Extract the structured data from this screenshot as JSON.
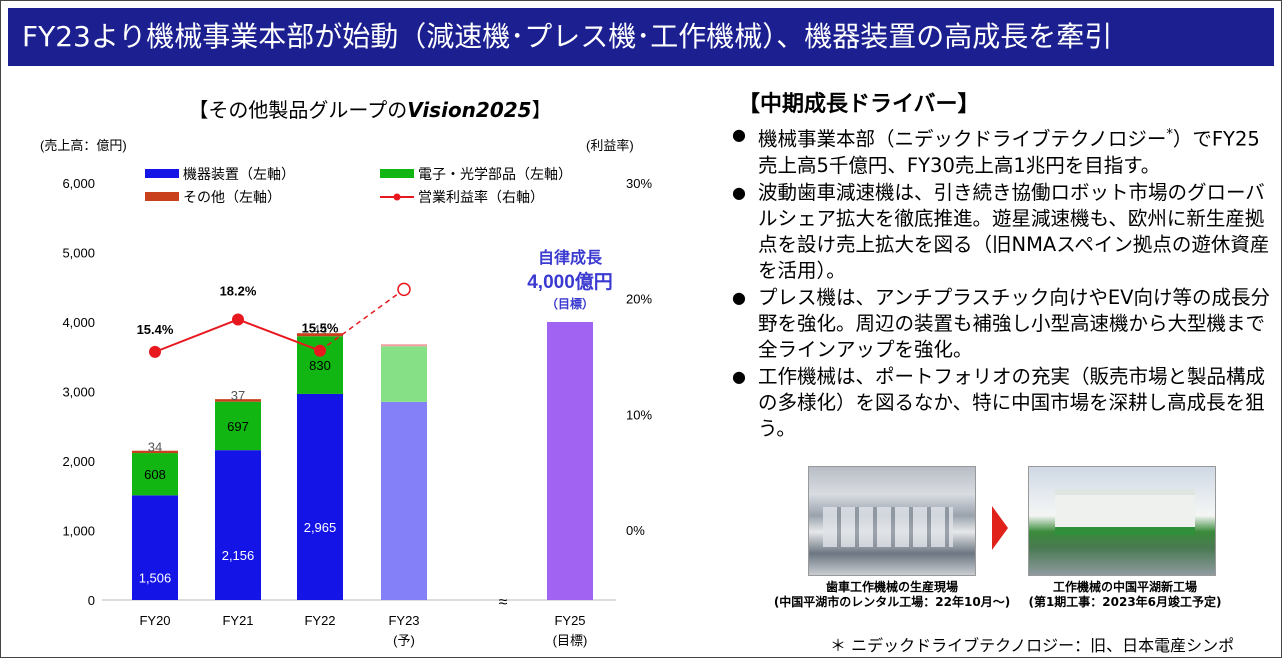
{
  "header": {
    "title": "FY23より機械事業本部が始動（減速機･プレス機･工作機械）、機器装置の高成長を牽引"
  },
  "chart_title": {
    "prefix": "【その他製品グループの",
    "emphasis": "Vision2025",
    "suffix": "】"
  },
  "chart_data": {
    "type": "bar",
    "stacked": true,
    "categories": [
      "FY20",
      "FY21",
      "FY22",
      "FY23",
      "FY25"
    ],
    "category_sublabels": [
      "",
      "",
      "",
      "(予)",
      "(目標)"
    ],
    "y_left": {
      "label": "(売上高：億円)",
      "ylim": [
        0,
        6000
      ],
      "ticks": [
        "0",
        "1,000",
        "2,000",
        "3,000",
        "4,000",
        "5,000",
        "6,000"
      ]
    },
    "y_right": {
      "label": "(利益率)",
      "ticks": [
        "0%",
        "10%",
        "20%",
        "30%"
      ]
    },
    "series": [
      {
        "name": "機器装置（左軸）",
        "color": "#1414e6",
        "values": [
          1506,
          2156,
          2965,
          2850,
          null
        ],
        "labels": [
          "1,506",
          "2,156",
          "2,965",
          "",
          ""
        ]
      },
      {
        "name": "電子・光学部品（左軸）",
        "color": "#12b612",
        "values": [
          608,
          697,
          830,
          800,
          null
        ],
        "labels": [
          "608",
          "697",
          "830",
          "",
          ""
        ]
      },
      {
        "name": "その他（左軸）",
        "color": "#c8401c",
        "values": [
          34,
          37,
          44,
          30,
          null
        ],
        "labels": [
          "34",
          "37",
          "44",
          "",
          ""
        ]
      }
    ],
    "target_bar": {
      "category": "FY25",
      "value": 4000,
      "color": "#a164f2"
    },
    "forecast_colors": [
      "#8480f8",
      "#86e086",
      "#f0a0a0"
    ],
    "line_series": {
      "name": "営業利益率（右軸）",
      "color": "#e8181f",
      "values": [
        15.4,
        18.2,
        15.5,
        20.8
      ],
      "labels": [
        "15.4%",
        "18.2%",
        "15.5%",
        ""
      ],
      "forecast_index": 3
    },
    "annotation": {
      "line1": "自律成長",
      "line2": "4,000億円",
      "line3": "（目標）",
      "color": "#3a3ad0"
    },
    "axis_break_symbol": "≈"
  },
  "drivers": {
    "title": "【中期成長ドライバー】",
    "items": [
      {
        "text_before": "機械事業本部（ニデックドライブテクノロジー",
        "star": "*",
        "text_after": "）でFY25売上高5千億円、FY30売上高1兆円を目指す。"
      },
      {
        "text": "波動歯車減速機は、引き続き協働ロボット市場のグローバルシェア拡大を徹底推進。遊星減速機も、欧州に新生産拠点を設け売上拡大を図る（旧NMAスペイン拠点の遊休資産を活用）。"
      },
      {
        "text": "プレス機は、アンチプラスチック向けやEV向け等の成長分野を強化。周辺の装置も補強し小型高速機から大型機まで全ラインアップを強化。"
      },
      {
        "text": "工作機械は、ポートフォリオの充実（販売市場と製品構成の多様化）を図るなか、特に中国市場を深耕し高成長を狙う。"
      }
    ]
  },
  "photos": {
    "left_caption_1": "歯車工作機械の生産現場",
    "left_caption_2": "(中国平湖市のレンタル工場：22年10月～)",
    "right_caption_1": "工作機械の中国平湖新工場",
    "right_caption_2": "(第1期工事：2023年6月竣工予定)"
  },
  "footnote": "＊ ニデックドライブテクノロジー：旧、日本電産シンポ"
}
